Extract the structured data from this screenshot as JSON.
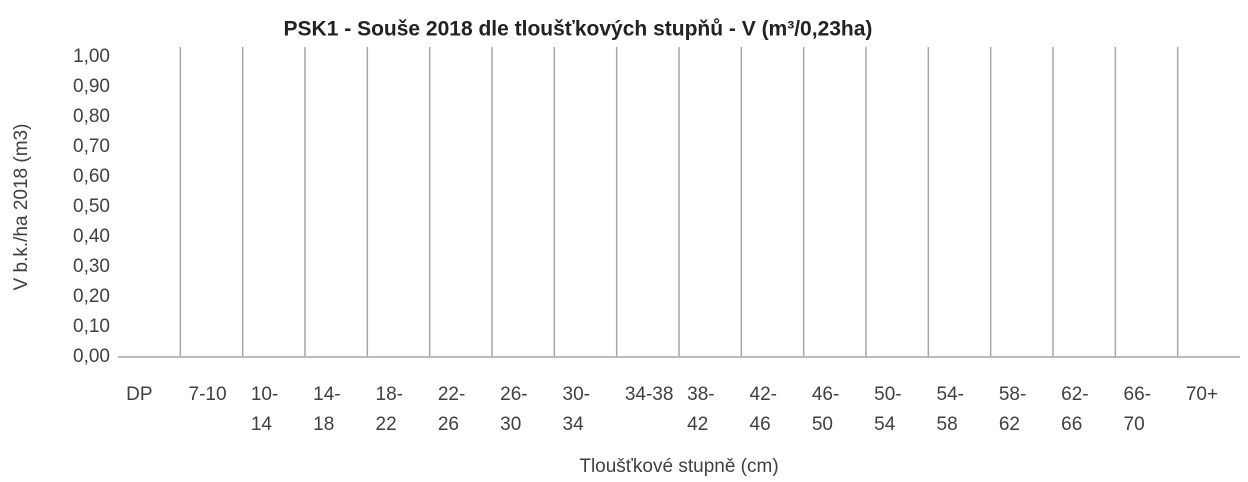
{
  "chart_data": {
    "type": "bar",
    "title": "PSK1 - Souše 2018 dle tloušťkových stupňů - V (m³/0,23ha)",
    "y_label": "V b.k./ha 2018 (m3)",
    "x_label": "Tloušťkové stupně (cm)",
    "categories": [
      "DP",
      "7-10",
      "10-14",
      "14-18",
      "18-22",
      "22-26",
      "26-30",
      "30-34",
      "34-38",
      "38-42",
      "42-46",
      "46-50",
      "50-54",
      "54-58",
      "58-62",
      "62-66",
      "66-70",
      "70+"
    ],
    "values": [
      0,
      0,
      0,
      0,
      0,
      0,
      0,
      0,
      0,
      0,
      0,
      0,
      0,
      0,
      0,
      0,
      0,
      0
    ],
    "color": "#4472c4",
    "ylim": [
      0,
      1
    ],
    "yticks": [
      {
        "value": 0,
        "label": "0,00"
      },
      {
        "value": 0.1,
        "label": "0,10"
      },
      {
        "value": 0.2,
        "label": "0,20"
      },
      {
        "value": 0.3,
        "label": "0,30"
      },
      {
        "value": 0.4,
        "label": "0,40"
      },
      {
        "value": 0.5,
        "label": "0,50"
      },
      {
        "value": 0.6,
        "label": "0,60"
      },
      {
        "value": 0.7,
        "label": "0,70"
      },
      {
        "value": 0.8,
        "label": "0,80"
      },
      {
        "value": 0.9,
        "label": "0,90"
      },
      {
        "value": 1,
        "label": "1,00"
      }
    ],
    "category_grid": true
  }
}
